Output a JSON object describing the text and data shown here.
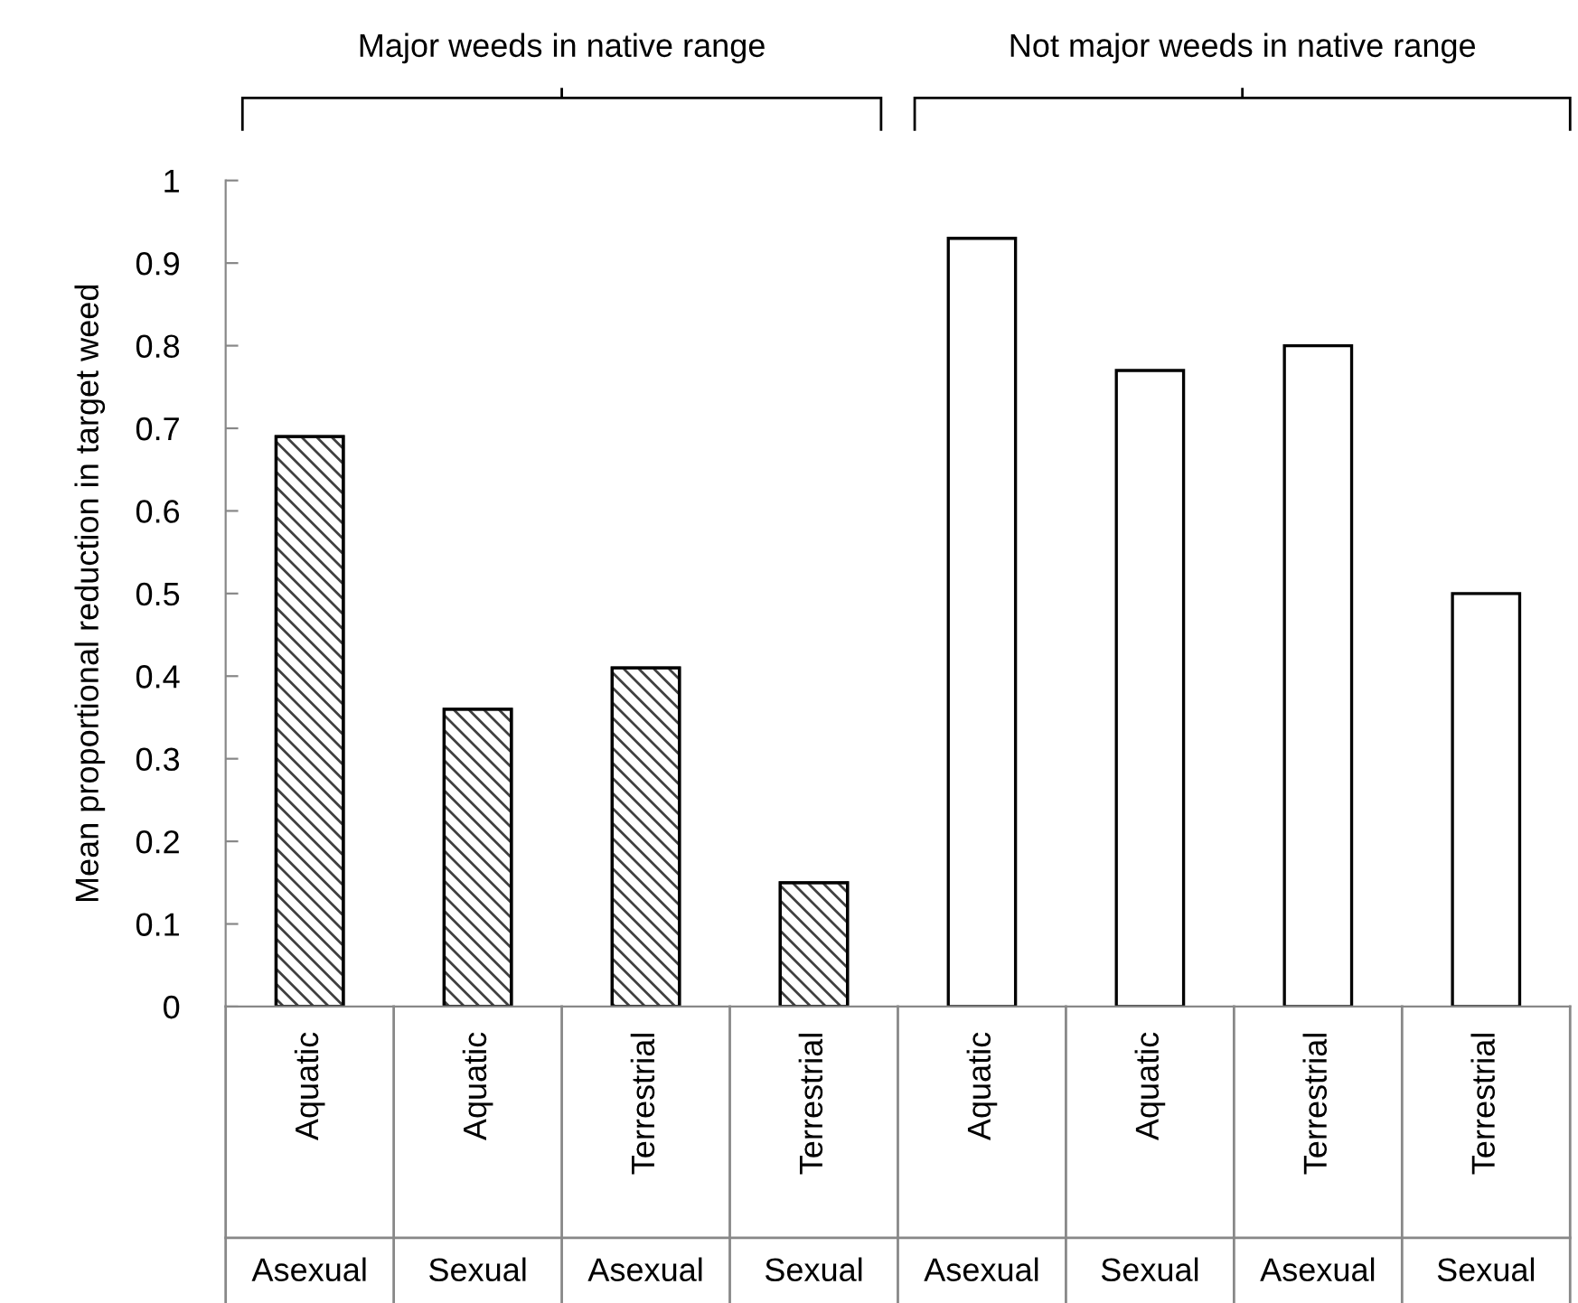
{
  "chart_data": {
    "type": "bar",
    "ylabel": "Mean proportional reduction in target weed",
    "categories": [
      "Aquatic",
      "Aquatic",
      "Terrestrial",
      "Terrestrial",
      "Aquatic",
      "Aquatic",
      "Terrestrial",
      "Terrestrial"
    ],
    "series": [
      {
        "color": "#404040",
        "values": [
          0.69,
          0.36,
          0.41,
          0.15,
          null,
          null,
          null,
          null
        ]
      },
      {
        "color": "#ffffff",
        "values": [
          null,
          null,
          null,
          null,
          0.93,
          0.77,
          0.8,
          0.5
        ]
      }
    ],
    "annotations": [
      "Major weeds in native range",
      "Not major weeds in native range",
      "Asexual",
      "Sexual",
      "Asexual",
      "Sexual",
      "Asexual",
      "Sexual",
      "Asexual",
      "Sexual"
    ],
    "ylim": [
      0,
      1
    ],
    "yticks": [
      0,
      0.1,
      0.2,
      0.3,
      0.4,
      0.5,
      0.6,
      0.7,
      0.8,
      0.9,
      1
    ],
    "grid": false,
    "legend": false
  }
}
